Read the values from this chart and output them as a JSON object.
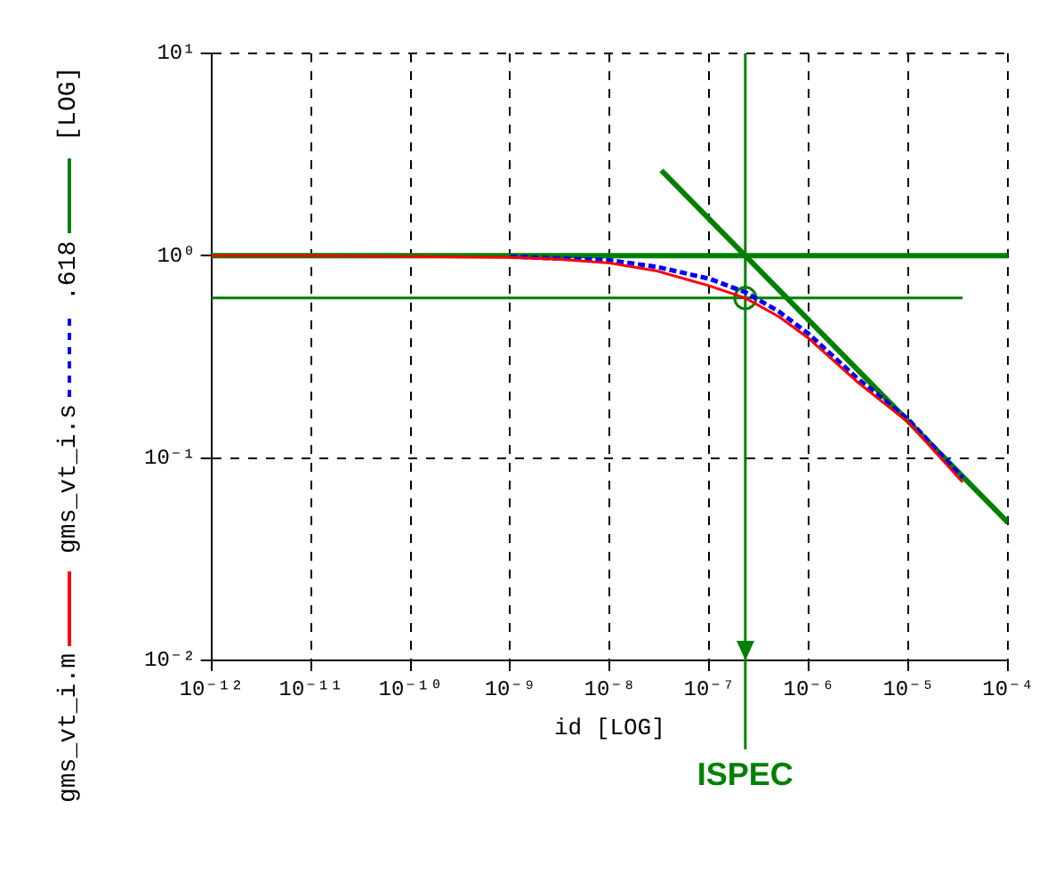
{
  "chart_data": {
    "type": "line",
    "xlabel": "id [LOG]",
    "ylabel": "[LOG]",
    "log": "xy",
    "grid": true,
    "legend": "left",
    "xlim": [
      1e-12,
      0.0001
    ],
    "ylim": [
      0.01,
      10
    ],
    "xticks": [
      {
        "value": 1e-12,
        "label": "10⁻¹²"
      },
      {
        "value": 1e-11,
        "label": "10⁻¹¹"
      },
      {
        "value": 1e-10,
        "label": "10⁻¹⁰"
      },
      {
        "value": 1e-09,
        "label": "10⁻⁹"
      },
      {
        "value": 1e-08,
        "label": "10⁻⁸"
      },
      {
        "value": 1e-07,
        "label": "10⁻⁷"
      },
      {
        "value": 1e-06,
        "label": "10⁻⁶"
      },
      {
        "value": 1e-05,
        "label": "10⁻⁵"
      },
      {
        "value": 0.0001,
        "label": "10⁻⁴"
      }
    ],
    "yticks": [
      {
        "value": 0.01,
        "label": "10⁻²"
      },
      {
        "value": 0.1,
        "label": "10⁻¹"
      },
      {
        "value": 1,
        "label": "10⁰"
      },
      {
        "value": 10,
        "label": "10¹"
      }
    ],
    "series": [
      {
        "name": "gms_vt_i.m",
        "color": "#ff0000",
        "line_style": "solid",
        "marker": "none",
        "x": [
          1e-12,
          1e-11,
          1e-10,
          1e-09,
          3e-09,
          1e-08,
          3e-08,
          1e-07,
          2.3e-07,
          5e-07,
          1e-06,
          3e-06,
          1e-05,
          3.5e-05
        ],
        "values": [
          1.0,
          1.0,
          0.99,
          0.98,
          0.96,
          0.92,
          0.84,
          0.71,
          0.618,
          0.5,
          0.39,
          0.24,
          0.15,
          0.076
        ]
      },
      {
        "name": "gms_vt_i.s",
        "color": "#0000ff",
        "line_style": "dashed",
        "marker": "none",
        "x": [
          1e-09,
          3e-09,
          1e-08,
          3e-08,
          1e-07,
          2.3e-07,
          5e-07,
          1e-06,
          3e-06,
          1e-05,
          3.5e-05
        ],
        "values": [
          0.99,
          0.97,
          0.95,
          0.88,
          0.77,
          0.66,
          0.53,
          0.41,
          0.25,
          0.155,
          0.08
        ]
      },
      {
        "name": ".618",
        "color": "#008000",
        "line_style": "solid",
        "marker": "none",
        "x": [
          1e-12,
          3.5e-05
        ],
        "values": [
          0.618,
          0.618
        ]
      },
      {
        "color": "#008000",
        "line_style": "solid",
        "marker": "none",
        "x": [
          3.3e-08,
          0.0001
        ],
        "values": [
          2.64,
          0.048
        ]
      },
      {
        "type": "scatter",
        "color": "#008000",
        "marker": "circle",
        "x": [
          2.3e-07
        ],
        "values": [
          0.618
        ]
      }
    ],
    "ref_lines": [
      {
        "axis": "y",
        "value": 1,
        "color": "#008000"
      },
      {
        "axis": "x",
        "value": 2.3e-07,
        "label": "ISPEC",
        "color": "#008000"
      }
    ]
  }
}
